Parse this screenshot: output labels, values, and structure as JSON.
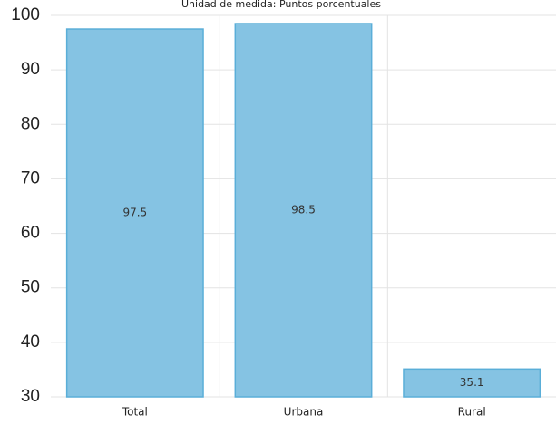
{
  "chart_data": {
    "type": "bar",
    "title": "",
    "subtitle": "Unidad de medida: Puntos porcentuales",
    "xlabel": "",
    "ylabel": "",
    "categories": [
      "Total",
      "Urbana",
      "Rural"
    ],
    "values": [
      97.5,
      98.5,
      35.1
    ],
    "data_labels": [
      "97.5",
      "98.5",
      "35.1"
    ],
    "ylim": [
      30,
      100
    ],
    "yticks": [
      30,
      40,
      50,
      60,
      70,
      80,
      90,
      100
    ],
    "grid": true,
    "legend": "none",
    "colors": {
      "bar_fill": "#85c3e3",
      "bar_stroke": "#5aaed8",
      "grid": "#e3e3e3"
    }
  }
}
